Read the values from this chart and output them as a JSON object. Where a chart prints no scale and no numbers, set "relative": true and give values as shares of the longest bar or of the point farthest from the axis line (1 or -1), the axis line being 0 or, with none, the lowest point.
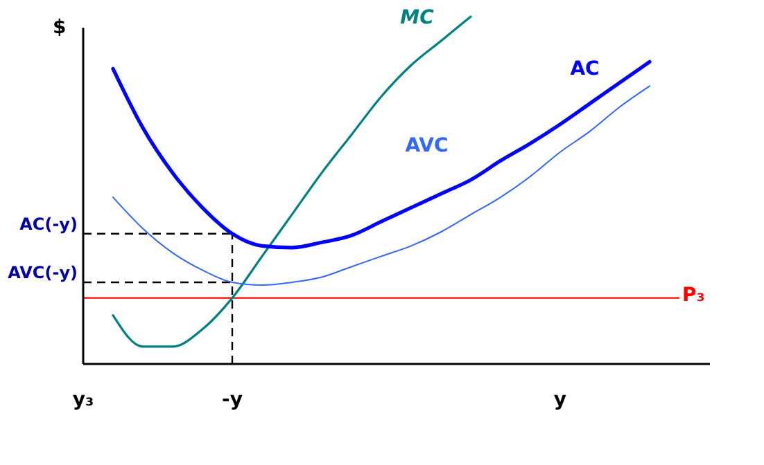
{
  "chart_data": {
    "type": "line",
    "relative": true,
    "ylabel": "$",
    "categories": [
      "y₃",
      null,
      null,
      null,
      null,
      "-y",
      null,
      null,
      null,
      null,
      null,
      null,
      null,
      null,
      null,
      null,
      "y",
      null,
      null,
      null,
      null
    ],
    "grid": false,
    "legend": false,
    "marker": "none",
    "line_style": "solid",
    "series": [
      {
        "name": "MC",
        "color": "#008080",
        "values": [
          null,
          0.14,
          0.05,
          0.05,
          0.1,
          0.19,
          0.31,
          0.43,
          0.55,
          0.66,
          0.77,
          0.86,
          0.93,
          1.0,
          null,
          null,
          null,
          null,
          null,
          null,
          null
        ]
      },
      {
        "name": "AC",
        "color": "#0000ff",
        "values": [
          null,
          0.85,
          0.68,
          0.55,
          0.45,
          0.375,
          0.34,
          0.335,
          0.35,
          0.37,
          0.41,
          0.45,
          0.49,
          0.53,
          0.585,
          0.635,
          0.69,
          0.75,
          0.81,
          0.87,
          null
        ]
      },
      {
        "name": "AVC",
        "color": "#3366ff",
        "values": [
          null,
          0.48,
          0.39,
          0.32,
          0.27,
          0.235,
          0.227,
          0.235,
          0.25,
          0.28,
          0.31,
          0.34,
          0.38,
          0.43,
          0.48,
          0.54,
          0.61,
          0.67,
          0.74,
          0.8,
          null
        ]
      }
    ],
    "ref_lines": [
      {
        "axis": "y",
        "value": 0.375,
        "label": "AC(-y)",
        "line_style": "dashed",
        "color": "#000000"
      },
      {
        "axis": "y",
        "value": 0.235,
        "label": "AVC(-y)",
        "line_style": "dashed",
        "color": "#000000"
      },
      {
        "axis": "y",
        "value": 0.19,
        "label": "P₃",
        "line_style": "solid",
        "color": "#ff0000"
      },
      {
        "axis": "x",
        "value": "-y",
        "line_style": "dashed",
        "color": "#000000"
      }
    ]
  }
}
